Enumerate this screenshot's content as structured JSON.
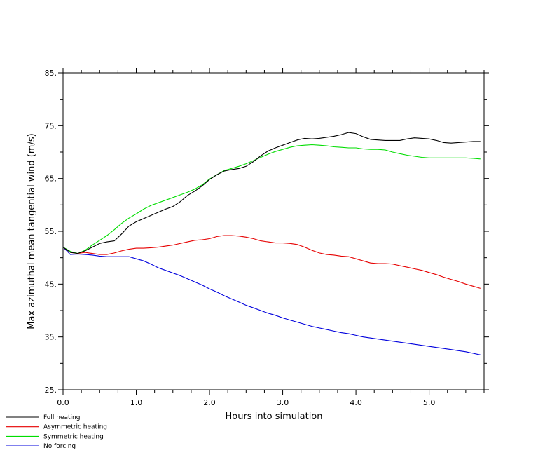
{
  "chart_data": {
    "type": "line",
    "xlabel": "Hours into simulation",
    "ylabel": "Max azimuthal mean tangential wind (m/s)",
    "xlim": [
      0.0,
      5.75
    ],
    "ylim": [
      25,
      85
    ],
    "x_ticks": [
      0.0,
      1.0,
      2.0,
      3.0,
      4.0,
      5.0
    ],
    "x_tick_labels": [
      "0.0",
      "1.0",
      "2.0",
      "3.0",
      "4.0",
      "5.0"
    ],
    "y_ticks": [
      25,
      35,
      45,
      55,
      65,
      75,
      85
    ],
    "y_tick_labels": [
      "25.",
      "35.",
      "45.",
      "55.",
      "65.",
      "75.",
      "85."
    ],
    "minor_x_step": 0.25,
    "minor_y_step": 5,
    "grid": false,
    "legend_position": "below-left",
    "x": [
      0.0,
      0.1,
      0.2,
      0.3,
      0.4,
      0.5,
      0.6,
      0.7,
      0.8,
      0.9,
      1.0,
      1.1,
      1.2,
      1.3,
      1.4,
      1.5,
      1.6,
      1.7,
      1.8,
      1.9,
      2.0,
      2.1,
      2.2,
      2.3,
      2.4,
      2.5,
      2.6,
      2.7,
      2.8,
      2.9,
      3.0,
      3.1,
      3.2,
      3.3,
      3.4,
      3.5,
      3.6,
      3.7,
      3.8,
      3.9,
      4.0,
      4.1,
      4.2,
      4.3,
      4.4,
      4.5,
      4.6,
      4.7,
      4.8,
      4.9,
      5.0,
      5.1,
      5.2,
      5.3,
      5.4,
      5.5,
      5.6,
      5.7
    ],
    "series": [
      {
        "name": "Full heating",
        "color": "#000000",
        "values": [
          52.0,
          51.0,
          50.8,
          51.3,
          52.0,
          52.7,
          53.0,
          53.2,
          54.5,
          56.0,
          56.8,
          57.4,
          58.0,
          58.6,
          59.2,
          59.7,
          60.6,
          61.8,
          62.6,
          63.6,
          64.8,
          65.7,
          66.4,
          66.7,
          66.9,
          67.3,
          68.2,
          69.3,
          70.2,
          70.8,
          71.3,
          71.8,
          72.3,
          72.6,
          72.5,
          72.6,
          72.8,
          73.0,
          73.3,
          73.7,
          73.5,
          72.9,
          72.4,
          72.3,
          72.2,
          72.2,
          72.2,
          72.5,
          72.7,
          72.6,
          72.5,
          72.2,
          71.8,
          71.7,
          71.8,
          71.9,
          72.0,
          72.0
        ]
      },
      {
        "name": "Asymmetric heating",
        "color": "#e60000",
        "values": [
          52.0,
          51.0,
          50.8,
          51.0,
          50.8,
          50.6,
          50.6,
          50.9,
          51.3,
          51.6,
          51.8,
          51.8,
          51.9,
          52.0,
          52.2,
          52.4,
          52.7,
          53.0,
          53.3,
          53.4,
          53.6,
          54.0,
          54.2,
          54.2,
          54.1,
          53.9,
          53.6,
          53.2,
          53.0,
          52.8,
          52.8,
          52.7,
          52.5,
          52.0,
          51.4,
          50.9,
          50.6,
          50.5,
          50.3,
          50.2,
          49.8,
          49.4,
          49.0,
          48.9,
          48.9,
          48.8,
          48.5,
          48.2,
          47.9,
          47.6,
          47.2,
          46.8,
          46.3,
          45.9,
          45.5,
          45.0,
          44.6,
          44.2
        ]
      },
      {
        "name": "Symmetric heating",
        "color": "#00dd00",
        "values": [
          52.0,
          51.2,
          50.8,
          51.4,
          52.4,
          53.3,
          54.2,
          55.3,
          56.5,
          57.5,
          58.3,
          59.2,
          59.9,
          60.4,
          60.9,
          61.4,
          61.9,
          62.4,
          63.0,
          63.8,
          64.9,
          65.7,
          66.5,
          66.9,
          67.3,
          67.8,
          68.4,
          69.0,
          69.6,
          70.1,
          70.5,
          70.9,
          71.2,
          71.3,
          71.4,
          71.3,
          71.2,
          71.0,
          70.9,
          70.8,
          70.8,
          70.6,
          70.5,
          70.5,
          70.4,
          70.0,
          69.7,
          69.4,
          69.2,
          69.0,
          68.9,
          68.9,
          68.9,
          68.9,
          68.9,
          68.9,
          68.8,
          68.7
        ]
      },
      {
        "name": "No forcing",
        "color": "#0000dd",
        "values": [
          52.0,
          50.6,
          50.7,
          50.6,
          50.5,
          50.3,
          50.2,
          50.2,
          50.2,
          50.2,
          49.8,
          49.4,
          48.8,
          48.1,
          47.6,
          47.1,
          46.6,
          46.0,
          45.4,
          44.8,
          44.1,
          43.5,
          42.8,
          42.2,
          41.6,
          41.0,
          40.5,
          40.0,
          39.5,
          39.1,
          38.6,
          38.2,
          37.8,
          37.4,
          37.0,
          36.7,
          36.4,
          36.1,
          35.8,
          35.6,
          35.3,
          35.0,
          34.8,
          34.6,
          34.4,
          34.2,
          34.0,
          33.8,
          33.6,
          33.4,
          33.2,
          33.0,
          32.8,
          32.6,
          32.4,
          32.2,
          31.9,
          31.6
        ]
      }
    ]
  }
}
